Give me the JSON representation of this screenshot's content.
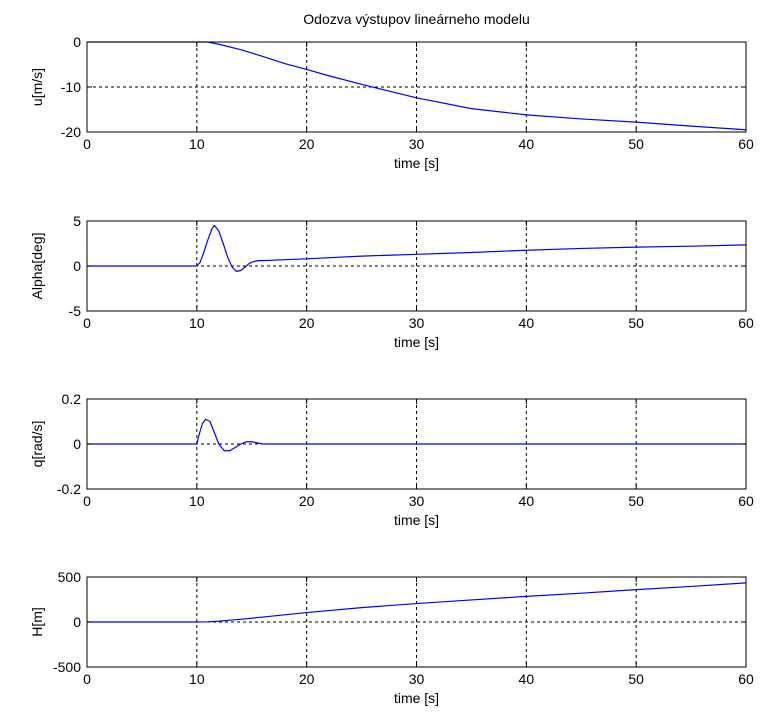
{
  "figure": {
    "title": "Odozva výstupov lineárneho modelu"
  },
  "chart_data": [
    {
      "type": "line",
      "title": "Odozva výstupov lineárneho modelu",
      "xlabel": "time [s]",
      "ylabel": "u[m/s]",
      "xlim": [
        0,
        60
      ],
      "ylim": [
        -20,
        0
      ],
      "xticks": [
        0,
        10,
        20,
        30,
        40,
        50,
        60
      ],
      "yticks": [
        -20,
        -10,
        0
      ],
      "xtick_labels": [
        "0",
        "10",
        "20",
        "30",
        "40",
        "50",
        "60"
      ],
      "ytick_labels": [
        "-20",
        "-10",
        "0"
      ],
      "grid": true,
      "legend": "none",
      "series": [
        {
          "color": "#0000ff",
          "x": [
            0,
            10,
            11,
            12,
            14,
            16,
            18,
            20,
            22,
            25,
            28,
            30,
            35,
            40,
            45,
            50,
            55,
            60
          ],
          "y": [
            0,
            0,
            0,
            -0.5,
            -1.7,
            -3.2,
            -4.8,
            -6.1,
            -7.5,
            -9.4,
            -11.2,
            -12.4,
            -14.8,
            -16.2,
            -17.1,
            -17.8,
            -18.7,
            -19.5
          ]
        }
      ]
    },
    {
      "type": "line",
      "xlabel": "time [s]",
      "ylabel": "Alpha[deg]",
      "xlim": [
        0,
        60
      ],
      "ylim": [
        -5,
        5
      ],
      "xticks": [
        0,
        10,
        20,
        30,
        40,
        50,
        60
      ],
      "yticks": [
        -5,
        0,
        5
      ],
      "xtick_labels": [
        "0",
        "10",
        "20",
        "30",
        "40",
        "50",
        "60"
      ],
      "ytick_labels": [
        "-5",
        "0",
        "5"
      ],
      "grid": true,
      "legend": "none",
      "series": [
        {
          "color": "#0000ff",
          "x": [
            0,
            9.9,
            10,
            10.3,
            10.6,
            11,
            11.4,
            11.6,
            12,
            12.4,
            12.8,
            13.2,
            13.6,
            14,
            14.4,
            14.8,
            15.2,
            15.6,
            16,
            18,
            20,
            25,
            30,
            35,
            40,
            45,
            50,
            55,
            60
          ],
          "y": [
            0,
            0,
            0,
            0.4,
            1.4,
            2.9,
            4.2,
            4.5,
            3.9,
            2.5,
            1.0,
            -0.1,
            -0.6,
            -0.5,
            -0.1,
            0.3,
            0.5,
            0.6,
            0.6,
            0.7,
            0.8,
            1.1,
            1.3,
            1.5,
            1.75,
            1.95,
            2.1,
            2.2,
            2.35
          ]
        }
      ]
    },
    {
      "type": "line",
      "xlabel": "time [s]",
      "ylabel": "q[rad/s]",
      "xlim": [
        0,
        60
      ],
      "ylim": [
        -0.2,
        0.2
      ],
      "xticks": [
        0,
        10,
        20,
        30,
        40,
        50,
        60
      ],
      "yticks": [
        -0.2,
        0,
        0.2
      ],
      "xtick_labels": [
        "0",
        "10",
        "20",
        "30",
        "40",
        "50",
        "60"
      ],
      "ytick_labels": [
        "-0.2",
        "0",
        "0.2"
      ],
      "grid": true,
      "legend": "none",
      "series": [
        {
          "color": "#0000ff",
          "x": [
            0,
            9.9,
            10,
            10.2,
            10.5,
            10.8,
            11.2,
            11.6,
            12,
            12.5,
            13,
            13.5,
            14,
            14.5,
            15,
            15.5,
            16,
            17,
            20,
            30,
            40,
            50,
            60
          ],
          "y": [
            0,
            0,
            0,
            0.04,
            0.09,
            0.11,
            0.1,
            0.05,
            0.0,
            -0.03,
            -0.03,
            -0.015,
            0.0,
            0.01,
            0.01,
            0.005,
            0,
            0,
            0,
            0,
            0,
            0,
            0
          ]
        }
      ]
    },
    {
      "type": "line",
      "xlabel": "time [s]",
      "ylabel": "H[m]",
      "xlim": [
        0,
        60
      ],
      "ylim": [
        -500,
        500
      ],
      "xticks": [
        0,
        10,
        20,
        30,
        40,
        50,
        60
      ],
      "yticks": [
        -500,
        0,
        500
      ],
      "xtick_labels": [
        "0",
        "10",
        "20",
        "30",
        "40",
        "50",
        "60"
      ],
      "ytick_labels": [
        "-500",
        "0",
        "500"
      ],
      "grid": true,
      "legend": "none",
      "series": [
        {
          "color": "#0000ff",
          "x": [
            0,
            10,
            11,
            12,
            13,
            14,
            16,
            20,
            25,
            30,
            35,
            40,
            45,
            50,
            55,
            60
          ],
          "y": [
            0,
            0,
            2,
            8,
            20,
            30,
            55,
            105,
            160,
            205,
            245,
            285,
            320,
            360,
            395,
            435
          ]
        }
      ]
    }
  ]
}
